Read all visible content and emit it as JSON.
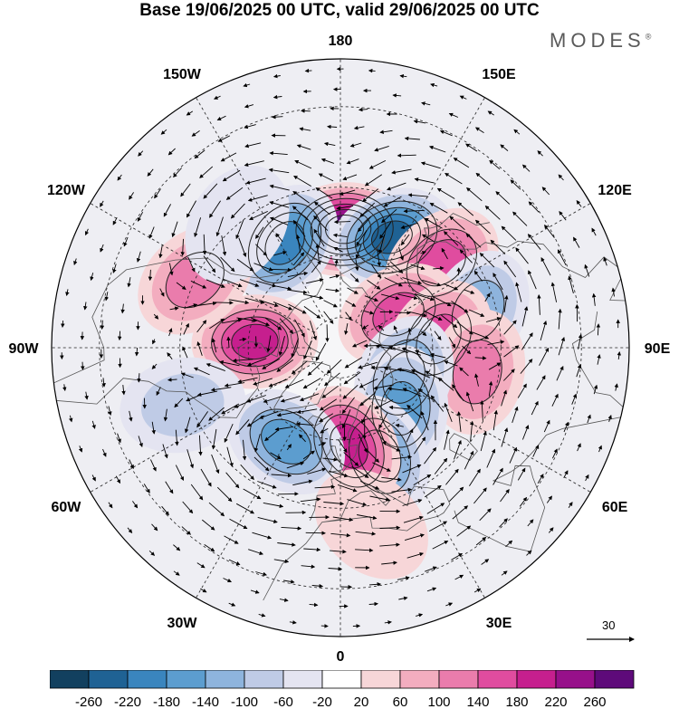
{
  "title": "Base 19/06/2025 00 UTC, valid 29/06/2025 00 UTC",
  "brand": "MODES",
  "brand_mark": "®",
  "longitude_labels": [
    {
      "lon": 180,
      "text": "180"
    },
    {
      "lon": 150,
      "text": "150E"
    },
    {
      "lon": 120,
      "text": "120E"
    },
    {
      "lon": 90,
      "text": "90E"
    },
    {
      "lon": 60,
      "text": "60E"
    },
    {
      "lon": 30,
      "text": "30E"
    },
    {
      "lon": 0,
      "text": "0"
    },
    {
      "lon": -30,
      "text": "30W"
    },
    {
      "lon": -60,
      "text": "60W"
    },
    {
      "lon": -90,
      "text": "90W"
    },
    {
      "lon": -120,
      "text": "120W"
    },
    {
      "lon": -150,
      "text": "150W"
    }
  ],
  "reference_vector_label": "30",
  "colorbar": {
    "ticks": [
      "-260",
      "-220",
      "-180",
      "-140",
      "-100",
      "-60",
      "-20",
      "20",
      "60",
      "100",
      "140",
      "180",
      "220",
      "260"
    ],
    "colors": [
      "#12405f",
      "#1f6294",
      "#3a85be",
      "#5c9dcf",
      "#8eb4dd",
      "#bfcbe6",
      "#e4e4f1",
      "#ffffff",
      "#f7d6d8",
      "#f3adbf",
      "#ea7cac",
      "#e04c9f",
      "#c61f8e",
      "#97108a",
      "#5e0a7a"
    ]
  },
  "anomaly_centers": [
    {
      "lon": 178,
      "lat": 52,
      "value": 260
    },
    {
      "lon": -152,
      "lat": 52,
      "value": -180
    },
    {
      "lon": 155,
      "lat": 51,
      "value": -220
    },
    {
      "lon": 130,
      "lat": 48,
      "value": 140
    },
    {
      "lon": 105,
      "lat": 45,
      "value": -100
    },
    {
      "lon": 120,
      "lat": 68,
      "value": 140
    },
    {
      "lon": 95,
      "lat": 58,
      "value": 140
    },
    {
      "lon": 80,
      "lat": 46,
      "value": 100
    },
    {
      "lon": 65,
      "lat": 67,
      "value": -140
    },
    {
      "lon": 45,
      "lat": 62,
      "value": -140
    },
    {
      "lon": 20,
      "lat": 53,
      "value": -140
    },
    {
      "lon": 5,
      "lat": 58,
      "value": 180
    },
    {
      "lon": -30,
      "lat": 55,
      "value": -140
    },
    {
      "lon": -94,
      "lat": 62,
      "value": 180
    },
    {
      "lon": -115,
      "lat": 40,
      "value": 100
    },
    {
      "lon": -70,
      "lat": 38,
      "value": -60
    },
    {
      "lon": -140,
      "lat": 40,
      "value": -20
    },
    {
      "lon": 10,
      "lat": 35,
      "value": 20
    }
  ],
  "wind_field": {
    "centers": [
      {
        "lon": 178,
        "lat": 52,
        "sense": 1
      },
      {
        "lon": -152,
        "lat": 52,
        "sense": -1
      },
      {
        "lon": 155,
        "lat": 51,
        "sense": -1
      },
      {
        "lon": 105,
        "lat": 45,
        "sense": -1
      },
      {
        "lon": 95,
        "lat": 58,
        "sense": 1
      },
      {
        "lon": 45,
        "lat": 62,
        "sense": -1
      },
      {
        "lon": 20,
        "lat": 53,
        "sense": -1
      },
      {
        "lon": 5,
        "lat": 58,
        "sense": 1
      },
      {
        "lon": -30,
        "lat": 55,
        "sense": -1
      },
      {
        "lon": -94,
        "lat": 62,
        "sense": 1
      }
    ]
  }
}
